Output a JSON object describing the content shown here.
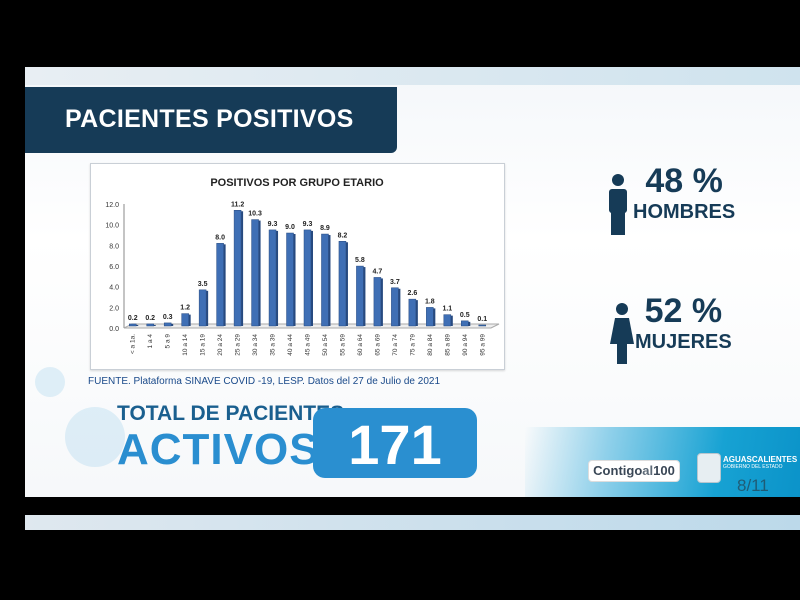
{
  "slide": {
    "title": "PACIENTES POSITIVOS",
    "source": "FUENTE. Plataforma SINAVE COVID -19, LESP. Datos del 27 de Julio de 2021",
    "men": {
      "percent": "48 %",
      "label": "HOMBRES",
      "icon": "male-person-icon"
    },
    "women": {
      "percent": "52 %",
      "label": "MUJERES",
      "icon": "female-person-icon"
    },
    "total_label_1": "TOTAL DE PACIENTES",
    "total_label_2": "ACTIVOS",
    "total_value": "171",
    "logo_contigo_1": "Contigo",
    "logo_contigo_2": "al",
    "logo_contigo_3": "100",
    "logo_state": "AGUASCALIENTES",
    "logo_state_sub": "GOBIERNO DEL ESTADO",
    "page": "8/11",
    "colors": {
      "title_bar": "#163b57",
      "accent": "#2a8fd0",
      "bar": "#3f6fb5"
    }
  },
  "chart_data": {
    "type": "bar",
    "title": "POSITIVOS POR GRUPO ETARIO",
    "categories": [
      "< a 1a.",
      "1 a 4",
      "5 a 9",
      "10 a 14",
      "15 a 19",
      "20 a 24",
      "25 a 29",
      "30 a 34",
      "35 a 39",
      "40 a 44",
      "45 a 49",
      "50 a 54",
      "55 a 59",
      "60 a 64",
      "65 a 69",
      "70 a 74",
      "75 a 79",
      "80 a 84",
      "85 a 89",
      "90 a 94",
      "95 a 99"
    ],
    "values": [
      0.2,
      0.2,
      0.3,
      1.2,
      3.5,
      8.0,
      11.2,
      10.3,
      9.3,
      9.0,
      9.3,
      8.9,
      8.2,
      5.8,
      4.7,
      3.7,
      2.6,
      1.8,
      1.1,
      0.5,
      0.1
    ],
    "yticks": [
      "0.0",
      "2.0",
      "4.0",
      "6.0",
      "8.0",
      "10.0",
      "12.0"
    ],
    "ylim": [
      0,
      12
    ],
    "grid": false,
    "legend": "none"
  }
}
